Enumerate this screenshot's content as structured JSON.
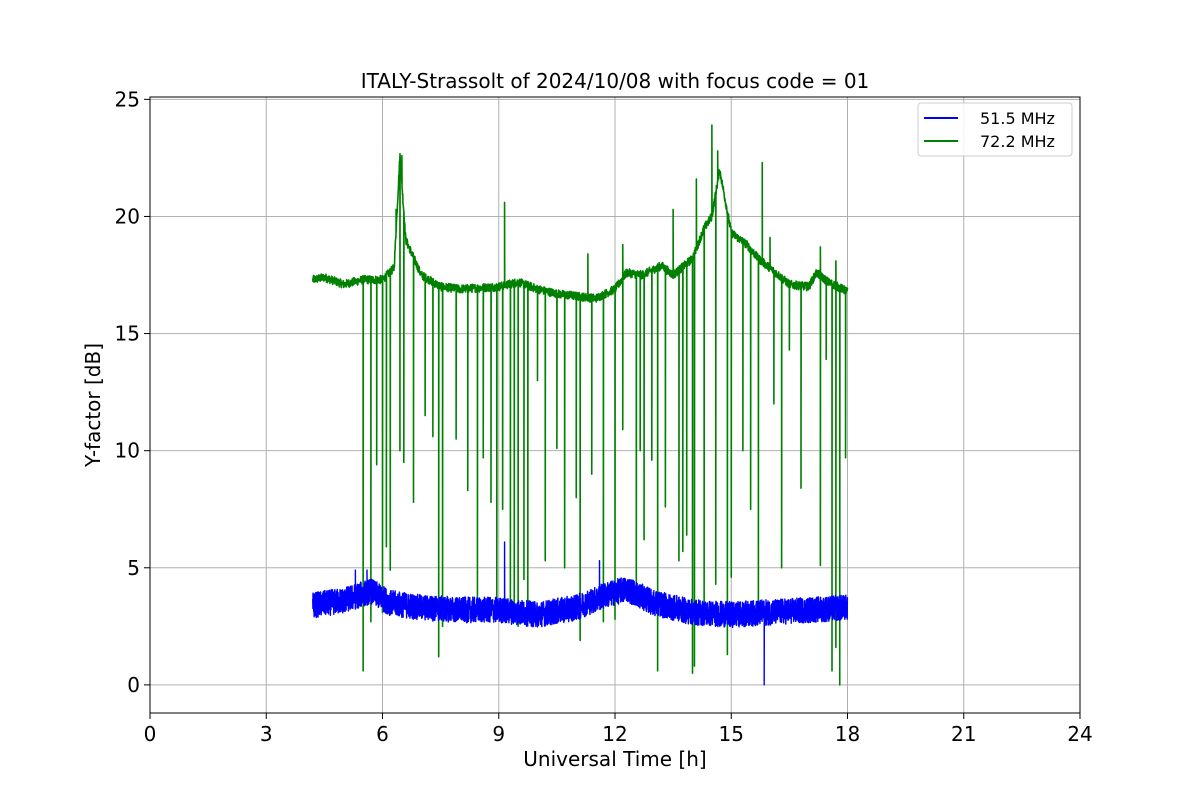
{
  "chart_data": {
    "type": "line",
    "title": "ITALY-Strassolt of 2024/10/08 with focus code = 01",
    "xlabel": "Universal Time [h]",
    "ylabel": "Y-factor [dB]",
    "xlim": [
      0,
      24
    ],
    "ylim": [
      -1.2,
      25.1
    ],
    "x_ticks": [
      0,
      3,
      6,
      9,
      12,
      15,
      18,
      21,
      24
    ],
    "y_ticks": [
      0,
      5,
      10,
      15,
      20,
      25
    ],
    "grid": true,
    "legend_position": "top-right",
    "series": [
      {
        "name": "51.5 MHz",
        "color": "#0000ff",
        "baseline": [
          [
            4.2,
            3.4
          ],
          [
            5.0,
            3.6
          ],
          [
            5.7,
            4.0
          ],
          [
            6.2,
            3.5
          ],
          [
            7.0,
            3.3
          ],
          [
            8.0,
            3.2
          ],
          [
            9.0,
            3.2
          ],
          [
            10.0,
            3.0
          ],
          [
            11.0,
            3.3
          ],
          [
            11.7,
            3.8
          ],
          [
            12.3,
            4.1
          ],
          [
            13.0,
            3.5
          ],
          [
            14.0,
            3.1
          ],
          [
            15.0,
            3.0
          ],
          [
            16.0,
            3.1
          ],
          [
            17.0,
            3.2
          ],
          [
            18.0,
            3.3
          ]
        ],
        "band_halfwidth": 0.55,
        "spikes": [
          [
            5.3,
            4.9
          ],
          [
            5.6,
            4.9
          ],
          [
            9.15,
            6.1
          ],
          [
            11.6,
            5.3
          ],
          [
            15.85,
            0.0
          ]
        ]
      },
      {
        "name": "72.2 MHz",
        "color": "#008000",
        "baseline": [
          [
            4.2,
            17.3
          ],
          [
            4.5,
            17.4
          ],
          [
            5.0,
            17.1
          ],
          [
            5.5,
            17.3
          ],
          [
            6.0,
            17.3
          ],
          [
            6.3,
            17.8
          ],
          [
            6.45,
            22.6
          ],
          [
            6.6,
            19.0
          ],
          [
            7.0,
            17.5
          ],
          [
            7.5,
            17.0
          ],
          [
            8.0,
            16.9
          ],
          [
            9.0,
            17.0
          ],
          [
            9.5,
            17.2
          ],
          [
            10.0,
            16.9
          ],
          [
            10.5,
            16.7
          ],
          [
            11.0,
            16.6
          ],
          [
            11.5,
            16.5
          ],
          [
            12.0,
            16.9
          ],
          [
            12.3,
            17.6
          ],
          [
            12.7,
            17.5
          ],
          [
            13.2,
            17.9
          ],
          [
            13.5,
            17.5
          ],
          [
            14.0,
            18.2
          ],
          [
            14.3,
            19.5
          ],
          [
            14.5,
            20.0
          ],
          [
            14.7,
            22.0
          ],
          [
            15.0,
            19.3
          ],
          [
            15.4,
            18.8
          ],
          [
            15.7,
            18.2
          ],
          [
            16.0,
            17.8
          ],
          [
            16.5,
            17.1
          ],
          [
            17.0,
            17.0
          ],
          [
            17.2,
            17.6
          ],
          [
            17.5,
            17.2
          ],
          [
            18.0,
            16.8
          ]
        ],
        "spikes_up": [
          [
            6.35,
            20.3
          ],
          [
            6.5,
            22.6
          ],
          [
            9.15,
            20.6
          ],
          [
            11.3,
            18.4
          ],
          [
            12.2,
            18.8
          ],
          [
            13.5,
            20.3
          ],
          [
            14.1,
            21.6
          ],
          [
            14.5,
            23.9
          ],
          [
            14.65,
            22.8
          ],
          [
            15.8,
            22.3
          ],
          [
            16.0,
            19.1
          ],
          [
            17.3,
            18.7
          ],
          [
            17.7,
            18.1
          ]
        ],
        "dropouts": [
          [
            5.5,
            0.6
          ],
          [
            5.7,
            2.7
          ],
          [
            5.85,
            9.4
          ],
          [
            6.0,
            3.1
          ],
          [
            6.1,
            5.9
          ],
          [
            6.2,
            4.9
          ],
          [
            6.45,
            10.0
          ],
          [
            6.55,
            9.5
          ],
          [
            6.8,
            7.8
          ],
          [
            7.1,
            11.5
          ],
          [
            7.3,
            10.6
          ],
          [
            7.45,
            1.2
          ],
          [
            7.55,
            2.5
          ],
          [
            7.9,
            10.5
          ],
          [
            8.2,
            8.3
          ],
          [
            8.45,
            3.6
          ],
          [
            8.6,
            9.7
          ],
          [
            8.8,
            7.8
          ],
          [
            8.95,
            2.8
          ],
          [
            9.1,
            7.5
          ],
          [
            9.3,
            3.2
          ],
          [
            9.4,
            3.5
          ],
          [
            9.5,
            2.5
          ],
          [
            9.65,
            4.5
          ],
          [
            9.75,
            3.2
          ],
          [
            10.0,
            13.0
          ],
          [
            10.2,
            5.3
          ],
          [
            10.5,
            10.1
          ],
          [
            10.7,
            5.0
          ],
          [
            11.0,
            8.0
          ],
          [
            11.1,
            1.9
          ],
          [
            11.4,
            9.0
          ],
          [
            11.7,
            2.7
          ],
          [
            12.0,
            2.8
          ],
          [
            12.2,
            10.9
          ],
          [
            12.55,
            4.1
          ],
          [
            12.65,
            10.0
          ],
          [
            12.75,
            6.2
          ],
          [
            12.95,
            9.6
          ],
          [
            13.1,
            0.6
          ],
          [
            13.3,
            7.6
          ],
          [
            13.65,
            5.3
          ],
          [
            13.75,
            5.7
          ],
          [
            13.85,
            6.4
          ],
          [
            14.0,
            0.5
          ],
          [
            14.05,
            0.8
          ],
          [
            14.3,
            3.4
          ],
          [
            14.6,
            4.3
          ],
          [
            14.9,
            1.3
          ],
          [
            15.0,
            4.6
          ],
          [
            15.3,
            10.0
          ],
          [
            15.5,
            7.5
          ],
          [
            15.7,
            2.8
          ],
          [
            16.1,
            12.0
          ],
          [
            16.3,
            5.0
          ],
          [
            16.5,
            14.3
          ],
          [
            16.8,
            8.4
          ],
          [
            17.3,
            5.1
          ],
          [
            17.45,
            13.9
          ],
          [
            17.6,
            0.6
          ],
          [
            17.7,
            1.6
          ],
          [
            17.8,
            0.0
          ],
          [
            17.95,
            9.7
          ]
        ]
      }
    ]
  }
}
